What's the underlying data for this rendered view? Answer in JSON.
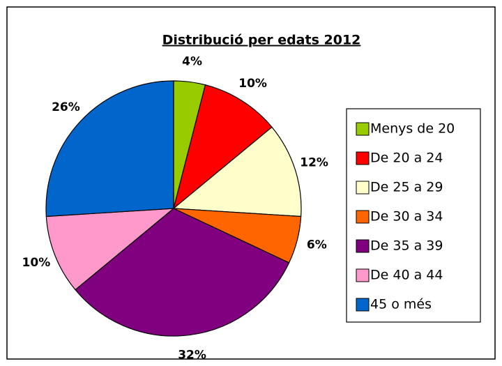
{
  "chart_data": {
    "type": "pie",
    "title": "Distribució per edats 2012",
    "categories": [
      "Menys de 20",
      "De 20 a 24",
      "De 25 a 29",
      "De 30 a 34",
      "De 35 a 39",
      "De 40 a 44",
      "45 o més"
    ],
    "values": [
      4,
      10,
      12,
      6,
      32,
      10,
      26
    ],
    "value_labels": [
      "4%",
      "10%",
      "12%",
      "6%",
      "32%",
      "10%",
      "26%"
    ],
    "colors": [
      "#99cc00",
      "#ff0000",
      "#ffffcc",
      "#ff6600",
      "#800080",
      "#ff99cc",
      "#0066cc"
    ],
    "legend": "right"
  }
}
